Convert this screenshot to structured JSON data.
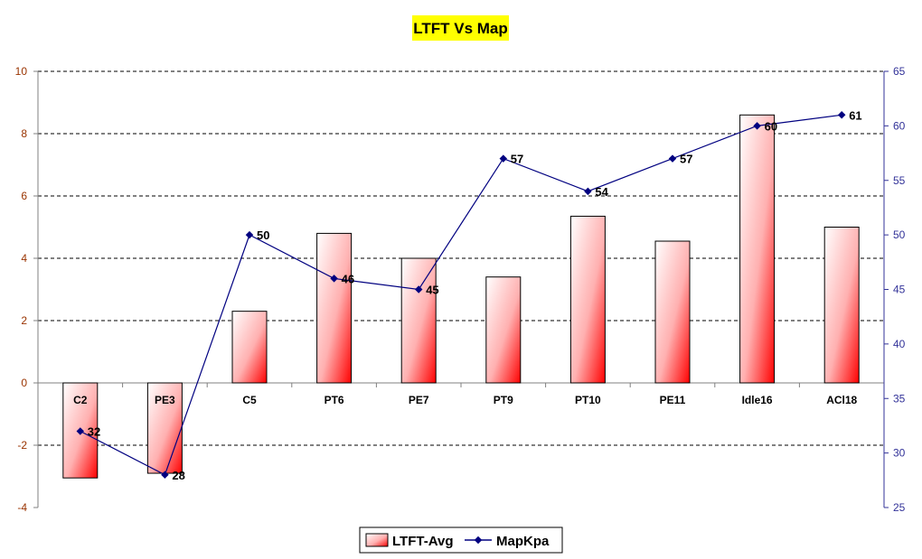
{
  "chart_data": {
    "type": "bar",
    "title": "LTFT Vs Map",
    "categories": [
      "C2",
      "PE3",
      "C5",
      "PT6",
      "PE7",
      "PT9",
      "PT10",
      "PE11",
      "Idle16",
      "ACl18"
    ],
    "series": [
      {
        "name": "LTFT-Avg",
        "type": "bar",
        "axis": "left",
        "values": [
          -3.05,
          -2.9,
          2.3,
          4.8,
          4.0,
          3.4,
          5.35,
          4.55,
          8.6,
          5.0
        ]
      },
      {
        "name": "MapKpa",
        "type": "line",
        "axis": "right",
        "values": [
          32,
          28,
          50,
          46,
          45,
          57,
          54,
          57,
          60,
          61
        ],
        "data_labels": [
          "32",
          "28",
          "50",
          "46",
          "45",
          "57",
          "54",
          "57",
          "60",
          "61"
        ]
      }
    ],
    "y_left": {
      "range": [
        -4,
        10
      ],
      "ticks": [
        "-4",
        "-2",
        "0",
        "2",
        "4",
        "6",
        "8",
        "10"
      ],
      "tick_values": [
        -4,
        -2,
        0,
        2,
        4,
        6,
        8,
        10
      ]
    },
    "y_right": {
      "range": [
        25,
        65
      ],
      "ticks": [
        "25",
        "30",
        "35",
        "40",
        "45",
        "50",
        "55",
        "60",
        "65"
      ],
      "tick_values": [
        25,
        30,
        35,
        40,
        45,
        50,
        55,
        60,
        65
      ]
    },
    "grid": "horizontal-dashed",
    "legend_position": "bottom-center",
    "colors": {
      "bar_edge": "#ff0000",
      "bar_light": "#ffffff",
      "line": "#000080",
      "left_axis_text": "#993300",
      "right_axis_text": "#333399",
      "title_bg": "#ffff00"
    }
  }
}
